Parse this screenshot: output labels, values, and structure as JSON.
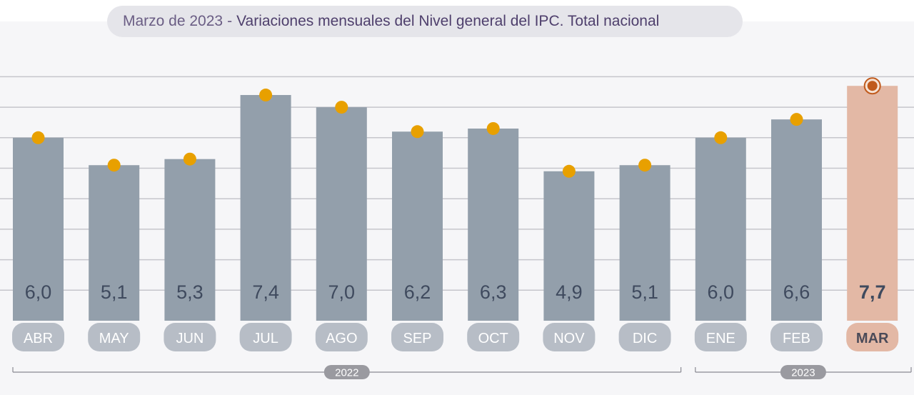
{
  "header": {
    "date": "Marzo de 2023",
    "separator": "-",
    "title": "Variaciones mensuales del Nivel general del IPC. Total nacional"
  },
  "chart_data": {
    "type": "bar",
    "categories": [
      "ABR",
      "MAY",
      "JUN",
      "JUL",
      "AGO",
      "SEP",
      "OCT",
      "NOV",
      "DIC",
      "ENE",
      "FEB",
      "MAR"
    ],
    "values": [
      6.0,
      5.1,
      5.3,
      7.4,
      7.0,
      6.2,
      6.3,
      4.9,
      5.1,
      6.0,
      6.6,
      7.7
    ],
    "value_labels": [
      "6,0",
      "5,1",
      "5,3",
      "7,4",
      "7,0",
      "6,2",
      "6,3",
      "4,9",
      "5,1",
      "6,0",
      "6,6",
      "7,7"
    ],
    "highlighted_category": "MAR",
    "ylim": [
      0,
      8
    ],
    "grid": true,
    "groups": [
      {
        "label": "2022",
        "from": "ABR",
        "to": "DIC"
      },
      {
        "label": "2023",
        "from": "ENE",
        "to": "MAR"
      }
    ],
    "colors": {
      "bar": "#939fab",
      "bar_highlight": "#e3b8a5",
      "marker": "#e8a000",
      "marker_highlight": "#c05a1c",
      "value_label": "#3f4a5e",
      "grid": "#c6c6cc"
    }
  }
}
